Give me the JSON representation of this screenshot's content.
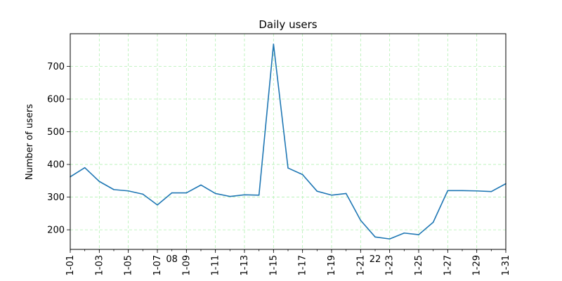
{
  "chart_data": {
    "type": "line",
    "title": "Daily users",
    "xlabel": "",
    "ylabel": "Number of users",
    "x": [
      "01-01",
      "01-02",
      "01-03",
      "01-04",
      "01-05",
      "01-06",
      "01-07",
      "01-08",
      "01-09",
      "01-10",
      "01-11",
      "01-12",
      "01-13",
      "01-14",
      "01-15",
      "01-16",
      "01-17",
      "01-18",
      "01-19",
      "01-20",
      "01-21",
      "01-22",
      "01-23",
      "01-24",
      "01-25",
      "01-26",
      "01-27",
      "01-28",
      "01-29",
      "01-30",
      "01-31"
    ],
    "series": [
      {
        "values": [
          362,
          390,
          348,
          323,
          319,
          309,
          276,
          313,
          313,
          337,
          311,
          302,
          307,
          306,
          768,
          389,
          369,
          318,
          306,
          311,
          229,
          178,
          172,
          190,
          185,
          223,
          320,
          320,
          319,
          317,
          341
        ],
        "color": "#1f77b4"
      }
    ],
    "x_tick_labels": [
      "1-01",
      "1-03",
      "1-05",
      "1-07",
      "1-09",
      "1-11",
      "1-13",
      "1-15",
      "1-17",
      "1-19",
      "1-21",
      "1-23",
      "1-25",
      "1-27",
      "1-29",
      "1-31"
    ],
    "x_tick_indices": [
      0,
      2,
      4,
      6,
      8,
      10,
      12,
      14,
      16,
      18,
      20,
      22,
      24,
      26,
      28,
      30
    ],
    "x_offset_labels": [
      {
        "text": "08",
        "index": 7
      },
      {
        "text": "22",
        "index": 21
      }
    ],
    "y_ticks": [
      200,
      300,
      400,
      500,
      600,
      700
    ],
    "ylim": [
      140,
      800
    ],
    "grid": true,
    "grid_color": "#b2f0b2"
  }
}
